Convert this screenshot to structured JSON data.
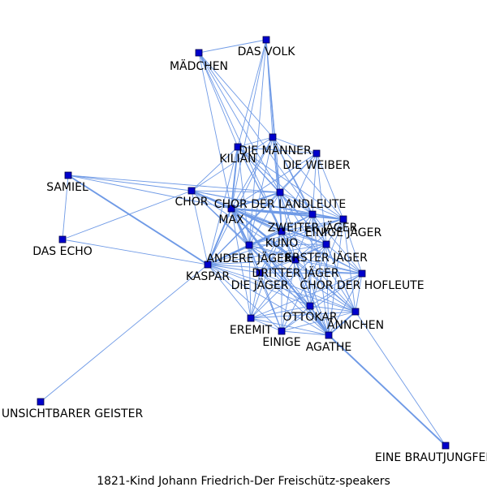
{
  "caption": "1821-Kind  Johann  Friedrich-Der  Freischütz-speakers",
  "colors": {
    "edge": "#6f9ae6",
    "node": "#0000cc"
  },
  "nodes": [
    {
      "id": "mädchen",
      "label": "MÄDCHEN"
    },
    {
      "id": "das-volk",
      "label": "DAS VOLK"
    },
    {
      "id": "kilian",
      "label": "KILIAN"
    },
    {
      "id": "die-männer",
      "label": "DIE MÄNNER"
    },
    {
      "id": "die-weiber",
      "label": "DIE WEIBER"
    },
    {
      "id": "samiel",
      "label": "SAMIEL"
    },
    {
      "id": "chor",
      "label": "CHOR"
    },
    {
      "id": "chor-der-landleute",
      "label": "CHOR DER LANDLEUTE"
    },
    {
      "id": "max",
      "label": "MAX"
    },
    {
      "id": "zweiter-jäger",
      "label": "ZWEITER JÄGER"
    },
    {
      "id": "einige-jäger",
      "label": "EINIGE JÄGER"
    },
    {
      "id": "das-echo",
      "label": "DAS ECHO"
    },
    {
      "id": "kuno",
      "label": "KUNO"
    },
    {
      "id": "erster-jäger",
      "label": "ERSTER JÄGER"
    },
    {
      "id": "andere-jäger",
      "label": "ANDERE JÄGER"
    },
    {
      "id": "dritter-jäger",
      "label": "DRITTER JÄGER"
    },
    {
      "id": "kaspar",
      "label": "KASPAR"
    },
    {
      "id": "die-jäger",
      "label": "DIE JÄGER"
    },
    {
      "id": "chor-der-hofleute",
      "label": "CHOR DER HOFLEUTE"
    },
    {
      "id": "ottokar",
      "label": "OTTOKAR"
    },
    {
      "id": "ännchen",
      "label": "ÄNNCHEN"
    },
    {
      "id": "eremit",
      "label": "EREMIT"
    },
    {
      "id": "einige",
      "label": "EINIGE"
    },
    {
      "id": "agathe",
      "label": "AGATHE"
    },
    {
      "id": "unsichtbarer-geister",
      "label": "UNSICHTBARER GEISTER"
    },
    {
      "id": "eine-brautjungfer",
      "label": "EINE BRAUTJUNGFER"
    }
  ],
  "edges": [
    [
      "mädchen",
      "das-volk",
      1
    ],
    [
      "mädchen",
      "kilian",
      1
    ],
    [
      "mädchen",
      "die-männer",
      1
    ],
    [
      "mädchen",
      "chor-der-landleute",
      1
    ],
    [
      "mädchen",
      "max",
      1
    ],
    [
      "mädchen",
      "zweiter-jäger",
      1
    ],
    [
      "mädchen",
      "kuno",
      1
    ],
    [
      "das-volk",
      "kilian",
      1
    ],
    [
      "das-volk",
      "die-männer",
      1
    ],
    [
      "das-volk",
      "chor-der-landleute",
      1
    ],
    [
      "das-volk",
      "max",
      1
    ],
    [
      "das-volk",
      "kuno",
      1
    ],
    [
      "das-volk",
      "andere-jäger",
      1
    ],
    [
      "kilian",
      "die-männer",
      1
    ],
    [
      "kilian",
      "die-weiber",
      1
    ],
    [
      "kilian",
      "chor",
      1
    ],
    [
      "kilian",
      "chor-der-landleute",
      1
    ],
    [
      "kilian",
      "max",
      2
    ],
    [
      "kilian",
      "zweiter-jäger",
      1
    ],
    [
      "kilian",
      "kuno",
      1
    ],
    [
      "kilian",
      "kaspar",
      1
    ],
    [
      "kilian",
      "andere-jäger",
      1
    ],
    [
      "kilian",
      "erster-jäger",
      1
    ],
    [
      "kilian",
      "einige-jäger",
      1
    ],
    [
      "kilian",
      "dritter-jäger",
      1
    ],
    [
      "die-männer",
      "die-weiber",
      1
    ],
    [
      "die-männer",
      "chor",
      1
    ],
    [
      "die-männer",
      "chor-der-landleute",
      1
    ],
    [
      "die-männer",
      "max",
      1
    ],
    [
      "die-männer",
      "kuno",
      1
    ],
    [
      "die-männer",
      "zweiter-jäger",
      1
    ],
    [
      "die-männer",
      "einige-jäger",
      1
    ],
    [
      "die-männer",
      "kaspar",
      1
    ],
    [
      "die-männer",
      "andere-jäger",
      1
    ],
    [
      "die-männer",
      "erster-jäger",
      1
    ],
    [
      "die-weiber",
      "chor-der-landleute",
      1
    ],
    [
      "die-weiber",
      "max",
      1
    ],
    [
      "die-weiber",
      "kuno",
      1
    ],
    [
      "die-weiber",
      "zweiter-jäger",
      1
    ],
    [
      "die-weiber",
      "einige-jäger",
      1
    ],
    [
      "die-weiber",
      "kaspar",
      1
    ],
    [
      "die-weiber",
      "erster-jäger",
      1
    ],
    [
      "samiel",
      "chor",
      1
    ],
    [
      "samiel",
      "das-echo",
      1
    ],
    [
      "samiel",
      "kaspar",
      2
    ],
    [
      "samiel",
      "max",
      1
    ],
    [
      "samiel",
      "chor-der-landleute",
      1
    ],
    [
      "chor",
      "chor-der-landleute",
      1
    ],
    [
      "chor",
      "max",
      2
    ],
    [
      "chor",
      "kaspar",
      1
    ],
    [
      "chor",
      "kuno",
      1
    ],
    [
      "chor",
      "zweiter-jäger",
      1
    ],
    [
      "chor",
      "einige-jäger",
      1
    ],
    [
      "chor",
      "andere-jäger",
      1
    ],
    [
      "chor",
      "dritter-jäger",
      1
    ],
    [
      "chor",
      "erster-jäger",
      1
    ],
    [
      "chor",
      "das-echo",
      1
    ],
    [
      "chor",
      "ottokar",
      1
    ],
    [
      "chor-der-landleute",
      "max",
      2
    ],
    [
      "chor-der-landleute",
      "kaspar",
      1
    ],
    [
      "chor-der-landleute",
      "kuno",
      1
    ],
    [
      "chor-der-landleute",
      "zweiter-jäger",
      1
    ],
    [
      "chor-der-landleute",
      "einige-jäger",
      1
    ],
    [
      "chor-der-landleute",
      "andere-jäger",
      1
    ],
    [
      "chor-der-landleute",
      "erster-jäger",
      1
    ],
    [
      "chor-der-landleute",
      "dritter-jäger",
      1
    ],
    [
      "chor-der-landleute",
      "agathe",
      1
    ],
    [
      "chor-der-landleute",
      "ännchen",
      1
    ],
    [
      "max",
      "kaspar",
      2
    ],
    [
      "max",
      "kuno",
      2
    ],
    [
      "max",
      "zweiter-jäger",
      2
    ],
    [
      "max",
      "einige-jäger",
      2
    ],
    [
      "max",
      "andere-jäger",
      2
    ],
    [
      "max",
      "erster-jäger",
      2
    ],
    [
      "max",
      "dritter-jäger",
      2
    ],
    [
      "max",
      "die-jäger",
      1
    ],
    [
      "max",
      "ottokar",
      1
    ],
    [
      "max",
      "agathe",
      2
    ],
    [
      "max",
      "ännchen",
      1
    ],
    [
      "max",
      "eremit",
      1
    ],
    [
      "max",
      "einige",
      1
    ],
    [
      "max",
      "chor-der-hofleute",
      1
    ],
    [
      "das-echo",
      "kaspar",
      1
    ],
    [
      "kaspar",
      "andere-jäger",
      2
    ],
    [
      "kaspar",
      "kuno",
      2
    ],
    [
      "kaspar",
      "erster-jäger",
      1
    ],
    [
      "kaspar",
      "zweiter-jäger",
      1
    ],
    [
      "kaspar",
      "einige-jäger",
      1
    ],
    [
      "kaspar",
      "dritter-jäger",
      1
    ],
    [
      "kaspar",
      "die-jäger",
      1
    ],
    [
      "kaspar",
      "ottokar",
      1
    ],
    [
      "kaspar",
      "agathe",
      1
    ],
    [
      "kaspar",
      "ännchen",
      1
    ],
    [
      "kaspar",
      "eremit",
      1
    ],
    [
      "kaspar",
      "einige",
      1
    ],
    [
      "kaspar",
      "chor-der-hofleute",
      1
    ],
    [
      "kaspar",
      "unsichtbarer-geister",
      1
    ],
    [
      "kuno",
      "zweiter-jäger",
      1
    ],
    [
      "kuno",
      "einige-jäger",
      1
    ],
    [
      "kuno",
      "andere-jäger",
      2
    ],
    [
      "kuno",
      "erster-jäger",
      1
    ],
    [
      "kuno",
      "dritter-jäger",
      1
    ],
    [
      "kuno",
      "die-jäger",
      1
    ],
    [
      "kuno",
      "ottokar",
      1
    ],
    [
      "kuno",
      "agathe",
      1
    ],
    [
      "kuno",
      "ännchen",
      1
    ],
    [
      "kuno",
      "chor-der-hofleute",
      1
    ],
    [
      "kuno",
      "eremit",
      1
    ],
    [
      "kuno",
      "einige",
      1
    ],
    [
      "zweiter-jäger",
      "einige-jäger",
      1
    ],
    [
      "zweiter-jäger",
      "andere-jäger",
      1
    ],
    [
      "zweiter-jäger",
      "erster-jäger",
      1
    ],
    [
      "zweiter-jäger",
      "dritter-jäger",
      1
    ],
    [
      "zweiter-jäger",
      "die-jäger",
      1
    ],
    [
      "zweiter-jäger",
      "ottokar",
      1
    ],
    [
      "zweiter-jäger",
      "agathe",
      1
    ],
    [
      "zweiter-jäger",
      "ännchen",
      1
    ],
    [
      "zweiter-jäger",
      "chor-der-hofleute",
      1
    ],
    [
      "einige-jäger",
      "andere-jäger",
      1
    ],
    [
      "einige-jäger",
      "erster-jäger",
      1
    ],
    [
      "einige-jäger",
      "dritter-jäger",
      1
    ],
    [
      "einige-jäger",
      "ottokar",
      1
    ],
    [
      "einige-jäger",
      "agathe",
      1
    ],
    [
      "einige-jäger",
      "ännchen",
      1
    ],
    [
      "einige-jäger",
      "chor-der-hofleute",
      1
    ],
    [
      "erster-jäger",
      "andere-jäger",
      1
    ],
    [
      "erster-jäger",
      "dritter-jäger",
      1
    ],
    [
      "erster-jäger",
      "die-jäger",
      1
    ],
    [
      "erster-jäger",
      "ottokar",
      1
    ],
    [
      "erster-jäger",
      "agathe",
      1
    ],
    [
      "erster-jäger",
      "ännchen",
      1
    ],
    [
      "erster-jäger",
      "chor-der-hofleute",
      1
    ],
    [
      "erster-jäger",
      "eremit",
      1
    ],
    [
      "erster-jäger",
      "einige",
      1
    ],
    [
      "andere-jäger",
      "dritter-jäger",
      1
    ],
    [
      "andere-jäger",
      "die-jäger",
      1
    ],
    [
      "andere-jäger",
      "ottokar",
      1
    ],
    [
      "andere-jäger",
      "agathe",
      1
    ],
    [
      "andere-jäger",
      "ännchen",
      1
    ],
    [
      "andere-jäger",
      "eremit",
      1
    ],
    [
      "andere-jäger",
      "einige",
      1
    ],
    [
      "andere-jäger",
      "chor-der-hofleute",
      1
    ],
    [
      "dritter-jäger",
      "die-jäger",
      1
    ],
    [
      "dritter-jäger",
      "ottokar",
      1
    ],
    [
      "dritter-jäger",
      "agathe",
      1
    ],
    [
      "dritter-jäger",
      "ännchen",
      1
    ],
    [
      "dritter-jäger",
      "chor-der-hofleute",
      1
    ],
    [
      "dritter-jäger",
      "eremit",
      1
    ],
    [
      "dritter-jäger",
      "einige",
      1
    ],
    [
      "die-jäger",
      "ottokar",
      1
    ],
    [
      "die-jäger",
      "agathe",
      1
    ],
    [
      "die-jäger",
      "ännchen",
      1
    ],
    [
      "die-jäger",
      "eremit",
      1
    ],
    [
      "die-jäger",
      "einige",
      1
    ],
    [
      "die-jäger",
      "chor-der-hofleute",
      1
    ],
    [
      "chor-der-hofleute",
      "ottokar",
      1
    ],
    [
      "chor-der-hofleute",
      "agathe",
      1
    ],
    [
      "chor-der-hofleute",
      "ännchen",
      1
    ],
    [
      "chor-der-hofleute",
      "eremit",
      1
    ],
    [
      "chor-der-hofleute",
      "einige",
      1
    ],
    [
      "ottokar",
      "agathe",
      2
    ],
    [
      "ottokar",
      "ännchen",
      1
    ],
    [
      "ottokar",
      "eremit",
      1
    ],
    [
      "ottokar",
      "einige",
      1
    ],
    [
      "ännchen",
      "agathe",
      2
    ],
    [
      "ännchen",
      "eremit",
      1
    ],
    [
      "ännchen",
      "einige",
      1
    ],
    [
      "ännchen",
      "eine-brautjungfer",
      1
    ],
    [
      "eremit",
      "einige",
      1
    ],
    [
      "eremit",
      "agathe",
      1
    ],
    [
      "einige",
      "agathe",
      1
    ],
    [
      "agathe",
      "eine-brautjungfer",
      2
    ]
  ]
}
